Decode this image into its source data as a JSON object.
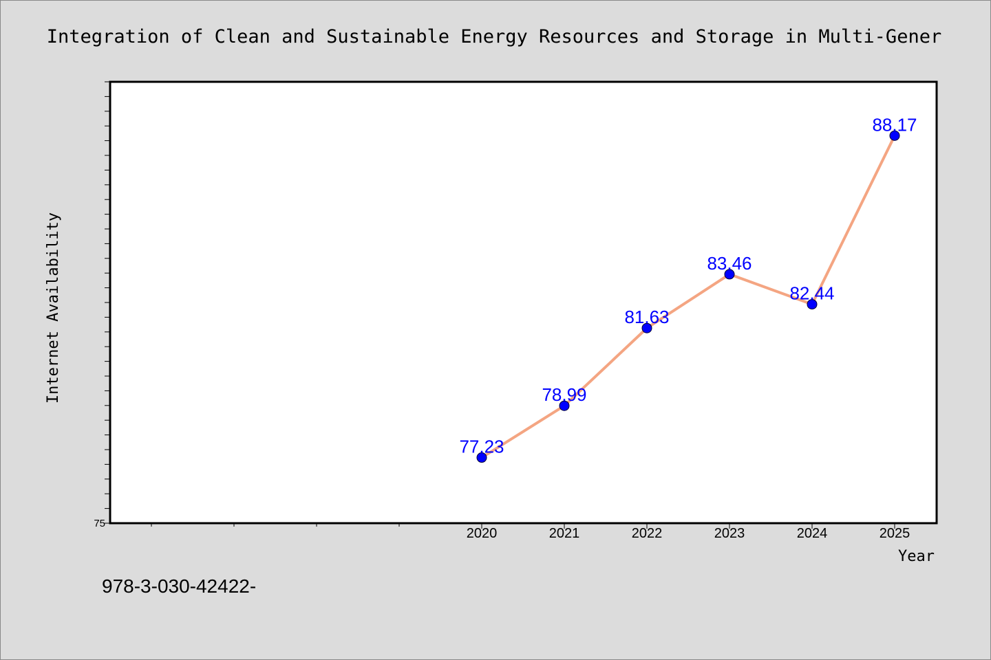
{
  "chart_data": {
    "type": "line",
    "title": "Integration of Clean and Sustainable Energy Resources and Storage in Multi-Gener",
    "xlabel": "Year",
    "ylabel": "Internet Availability",
    "x": [
      "2020",
      "2021",
      "2022",
      "2023",
      "2024",
      "2025"
    ],
    "series": [
      {
        "values": [
          77.23,
          78.99,
          81.63,
          83.46,
          82.44,
          88.17
        ],
        "color": "#f4a582",
        "marker_color": "#0000ff"
      }
    ],
    "data_labels": [
      "77.23",
      "78.99",
      "81.63",
      "83.46",
      "82.44",
      "88.17"
    ],
    "ylim": [
      75,
      90
    ],
    "y_tick_labels": [
      "75"
    ],
    "x_minor_ticks": 4,
    "grid": false,
    "background": "#dcdcdc",
    "plot_background": "#ffffff"
  },
  "footnote": "978-3-030-42422-"
}
